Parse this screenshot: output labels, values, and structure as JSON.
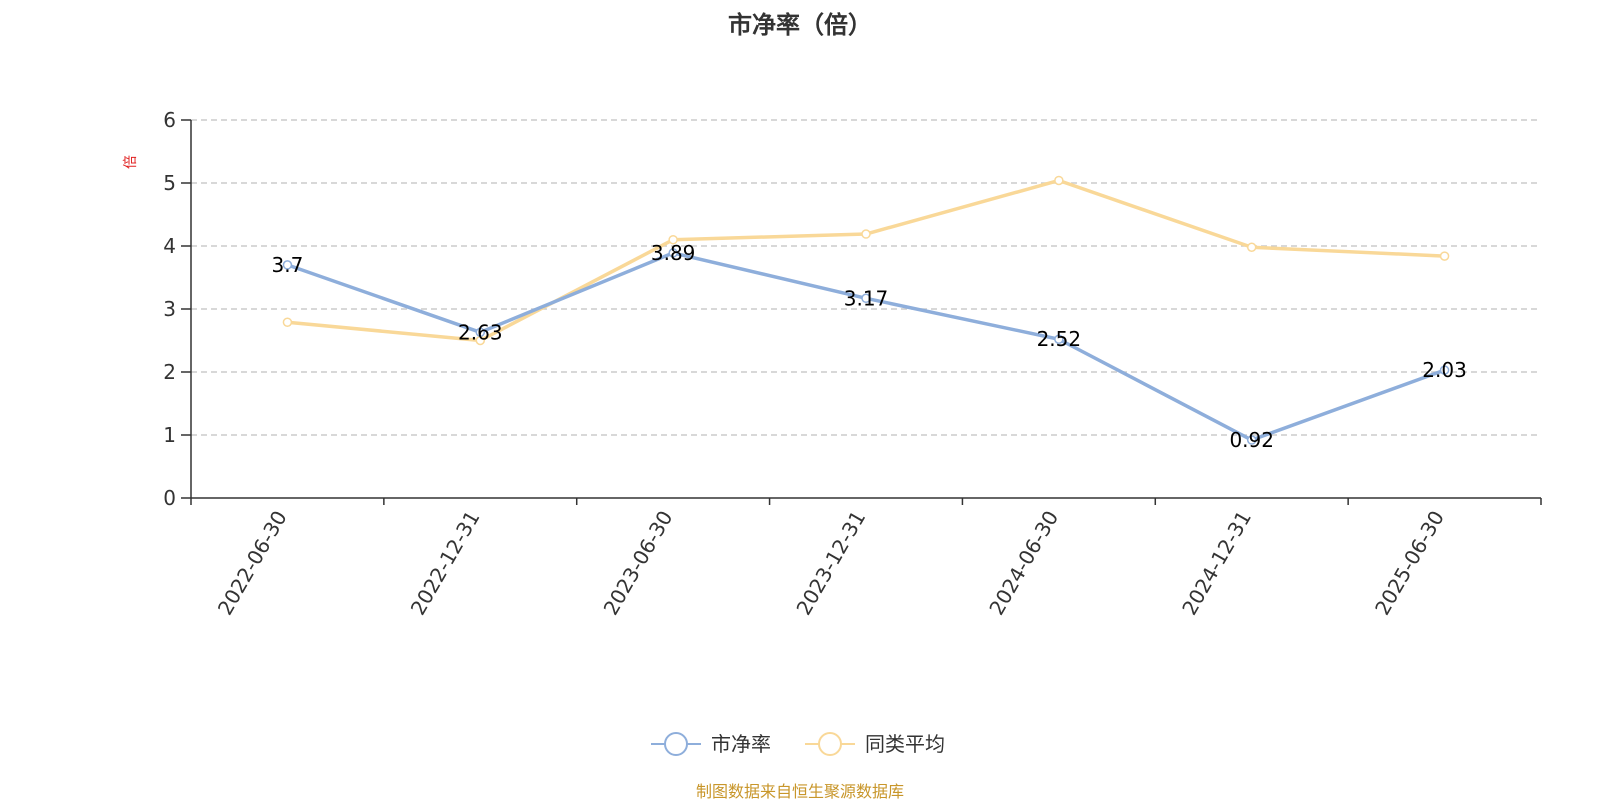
{
  "chart_data": {
    "type": "line",
    "title": "市净率（倍）",
    "y_unit_label": "倍",
    "categories": [
      "2022-06-30",
      "2022-12-31",
      "2023-06-30",
      "2023-12-31",
      "2024-06-30",
      "2024-12-31",
      "2025-06-30"
    ],
    "ylim": [
      0,
      6
    ],
    "yticks": [
      0,
      1,
      2,
      3,
      4,
      5,
      6
    ],
    "grid": true,
    "legend_position": "bottom-center",
    "series": [
      {
        "name": "市净率",
        "color": "#8eaedb",
        "values": [
          3.7,
          2.63,
          3.89,
          3.17,
          2.52,
          0.92,
          2.03
        ],
        "data_labels": [
          "3.7",
          "2.63",
          "3.89",
          "3.17",
          "2.52",
          "0.92",
          "2.03"
        ]
      },
      {
        "name": "同类平均",
        "color": "#f9d898",
        "values": [
          2.79,
          2.5,
          4.1,
          4.19,
          5.04,
          3.98,
          3.84
        ]
      }
    ],
    "source": "制图数据来自恒生聚源数据库"
  }
}
